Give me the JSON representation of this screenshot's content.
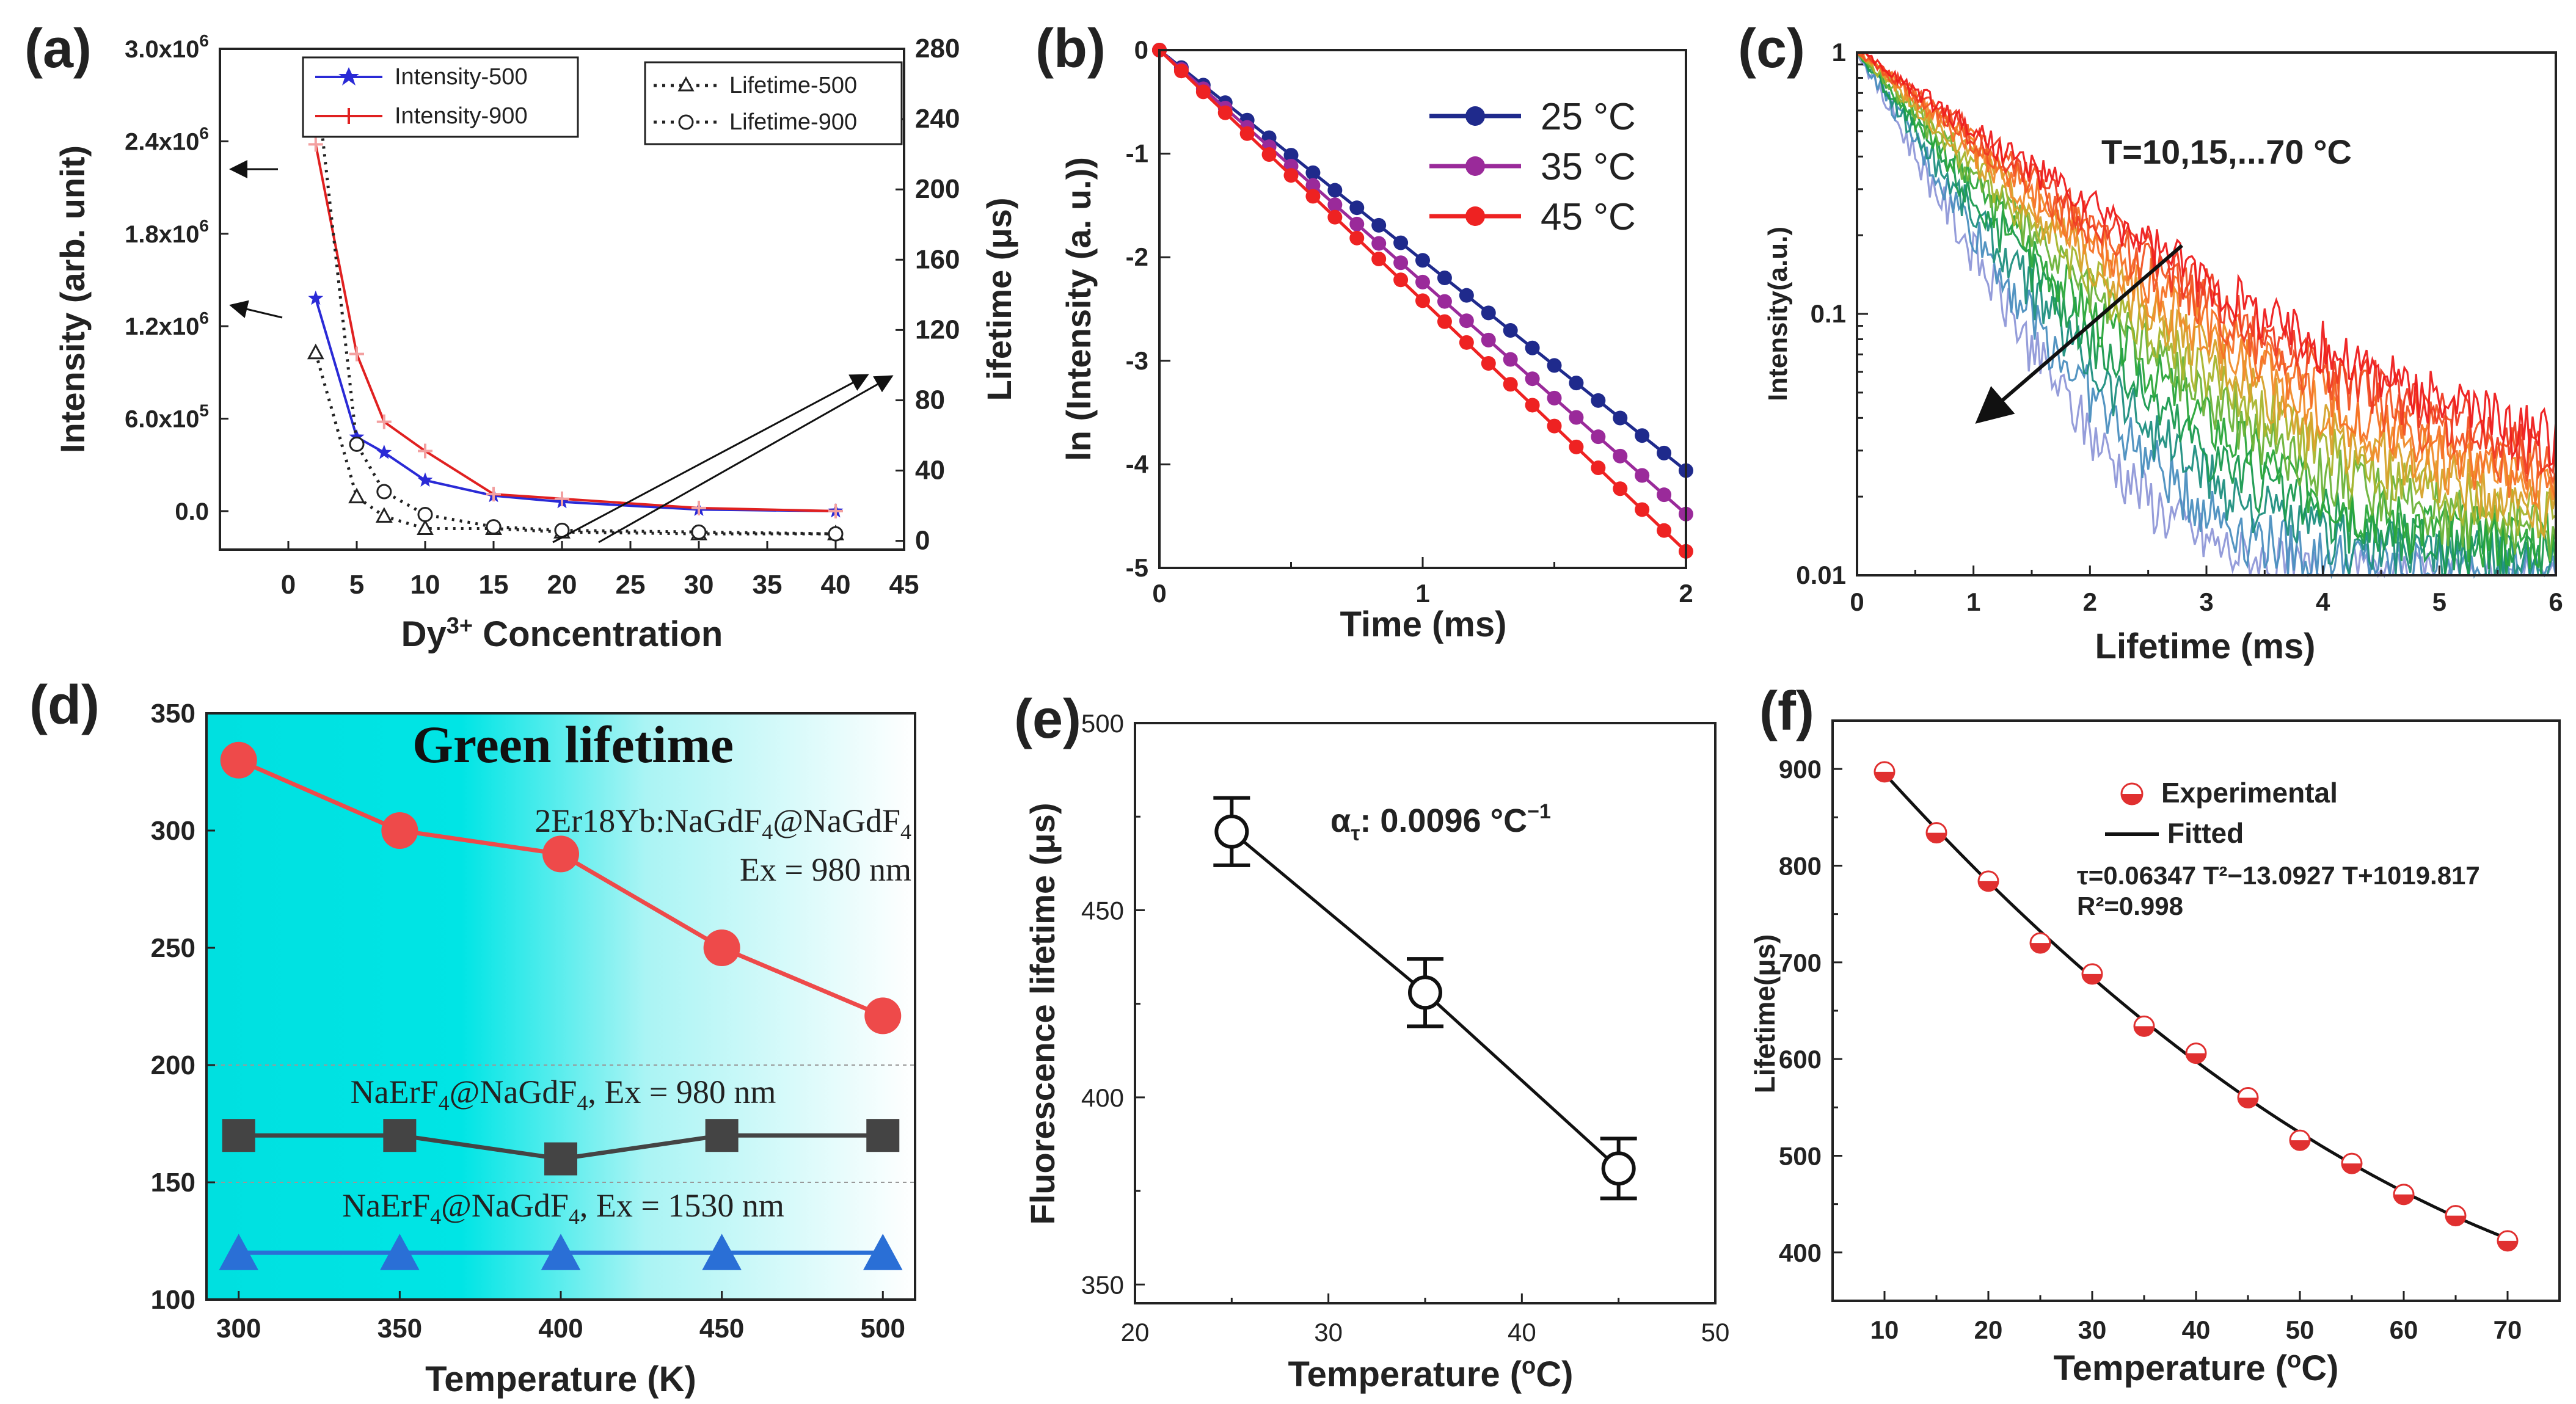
{
  "chart_data": [
    {
      "id": "a",
      "panel_label": "(a)",
      "type": "line",
      "xlabel": "Dy",
      "xlabel_sup": "3+",
      "xlabel_tail": " Concentration",
      "ylabel": "Intensity (arb. unit)",
      "y2label": "Lifetime (μs)",
      "xlim": [
        -5,
        45
      ],
      "ylim": [
        -250000,
        3000000
      ],
      "y2lim": [
        -5,
        280
      ],
      "xticks": [
        0,
        5,
        10,
        15,
        20,
        25,
        30,
        35,
        40,
        45
      ],
      "yticks": [
        {
          "v": 0,
          "t": "0.0"
        },
        {
          "v": 600000,
          "t": "6.0x10",
          "e": "5"
        },
        {
          "v": 1200000,
          "t": "1.2x10",
          "e": "6"
        },
        {
          "v": 1800000,
          "t": "1.8x10",
          "e": "6"
        },
        {
          "v": 2400000,
          "t": "2.4x10",
          "e": "6"
        },
        {
          "v": 3000000,
          "t": "3.0x10",
          "e": "6"
        }
      ],
      "y2ticks": [
        0,
        40,
        80,
        120,
        160,
        200,
        240,
        280
      ],
      "series": [
        {
          "name": "Intensity-500",
          "axis": "left",
          "color": "#2a2ad6",
          "marker": "star",
          "x": [
            2,
            5,
            7,
            10,
            15,
            20,
            30,
            40
          ],
          "values": [
            1380000,
            480000,
            380000,
            200000,
            100000,
            60000,
            10000,
            0
          ]
        },
        {
          "name": "Intensity-900",
          "axis": "left",
          "color": "#e02020",
          "marker": "plus",
          "x": [
            2,
            5,
            7,
            10,
            15,
            20,
            30,
            40
          ],
          "values": [
            2380000,
            1020000,
            580000,
            390000,
            110000,
            80000,
            20000,
            0
          ]
        },
        {
          "name": "Lifetime-500",
          "axis": "right",
          "color": "#222222",
          "marker": "triangle",
          "x": [
            2,
            5,
            7,
            10,
            15,
            20,
            30,
            40
          ],
          "values": [
            107,
            25,
            14,
            7,
            7,
            5,
            4,
            4
          ]
        },
        {
          "name": "Lifetime-900",
          "axis": "right",
          "color": "#222222",
          "marker": "circle",
          "x": [
            2,
            5,
            7,
            10,
            15,
            20,
            30,
            40
          ],
          "values": [
            265,
            55,
            28,
            15,
            8,
            6,
            5,
            4
          ]
        }
      ]
    },
    {
      "id": "b",
      "panel_label": "(b)",
      "type": "line",
      "xlabel": "Time (ms)",
      "ylabel": "ln (Intensity (a. u.))",
      "xlim": [
        0,
        2
      ],
      "ylim": [
        -5,
        0
      ],
      "xticks": [
        0,
        1,
        2
      ],
      "yticks": [
        0,
        -1,
        -2,
        -3,
        -4,
        -5
      ],
      "series": [
        {
          "name": "25 °C",
          "color": "#1f2a8c",
          "slope": -2.03
        },
        {
          "name": "35 °C",
          "color": "#9a2a9a",
          "slope": -2.24
        },
        {
          "name": "45 °C",
          "color": "#ee2222",
          "slope": -2.42
        }
      ]
    },
    {
      "id": "c",
      "panel_label": "(c)",
      "type": "line",
      "xlabel": "Lifetime (ms)",
      "ylabel": "Intensity(a.u.)",
      "xlim": [
        0,
        6
      ],
      "ylim": [
        0.01,
        1
      ],
      "yscale": "log",
      "xticks": [
        0,
        1,
        2,
        3,
        4,
        5,
        6
      ],
      "yticks": [
        {
          "v": 1,
          "t": "1"
        },
        {
          "v": 0.1,
          "t": "0.1"
        },
        {
          "v": 0.01,
          "t": "0.01"
        }
      ],
      "annotation": "T=10,15,...70 °C",
      "temperatures": [
        10,
        15,
        20,
        25,
        30,
        35,
        40,
        45,
        50,
        55,
        60,
        65,
        70
      ]
    },
    {
      "id": "d",
      "panel_label": "(d)",
      "type": "line",
      "title": "Green lifetime",
      "xlabel": "Temperature (K)",
      "ylabel": "",
      "xlim": [
        290,
        510
      ],
      "ylim": [
        100,
        350
      ],
      "xticks": [
        300,
        350,
        400,
        450,
        500
      ],
      "yticks": [
        100,
        150,
        200,
        250,
        300,
        350
      ],
      "x": [
        300,
        350,
        400,
        450,
        500
      ],
      "series": [
        {
          "name": "2Er18Yb:NaGdF4@NaGdF4",
          "label_main": "2Er18Yb:NaGdF",
          "label_sub": "4",
          "label_mid": "@NaGdF",
          "label_sub2": "4",
          "label_line2": "Ex = 980 nm",
          "color": "#ee4a4a",
          "marker": "circle",
          "values": [
            330,
            300,
            290,
            250,
            221
          ]
        },
        {
          "name": "NaErF4@NaGdF4, Ex = 980 nm",
          "label_main": "NaErF",
          "label_sub": "4",
          "label_mid": "@NaGdF",
          "label_sub2": "4",
          "label_tail": ", Ex = 980 nm",
          "color": "#444444",
          "marker": "square",
          "values": [
            170,
            170,
            160,
            170,
            170
          ]
        },
        {
          "name": "NaErF4@NaGdF4, Ex = 1530 nm",
          "label_main": "NaErF",
          "label_sub": "4",
          "label_mid": "@NaGdF",
          "label_sub2": "4",
          "label_tail": ", Ex = 1530 nm",
          "color": "#2a6fd6",
          "marker": "triangle",
          "values": [
            120,
            120,
            120,
            120,
            120
          ]
        }
      ]
    },
    {
      "id": "e",
      "panel_label": "(e)",
      "type": "line",
      "xlabel": "Temperature (",
      "xlabel_sup": "o",
      "xlabel_tail": "C)",
      "ylabel": "Fluorescence lifetime (μs)",
      "xlim": [
        20,
        50
      ],
      "ylim": [
        345,
        500
      ],
      "xticks": [
        20,
        30,
        40,
        50
      ],
      "yticks": [
        350,
        400,
        450,
        500
      ],
      "annotation_prefix": "α",
      "annotation_sub": "τ",
      "annotation_text": ": 0.0096 °C",
      "annotation_sup": "−1",
      "series": [
        {
          "name": "lifetime",
          "x": [
            25,
            35,
            45
          ],
          "values": [
            471,
            428,
            381
          ],
          "errors": [
            9,
            9,
            8
          ]
        }
      ]
    },
    {
      "id": "f",
      "panel_label": "(f)",
      "type": "scatter",
      "xlabel": "Temperature (",
      "xlabel_sup": "o",
      "xlabel_tail": "C)",
      "ylabel": "Lifetime(μs)",
      "xlim": [
        5,
        75
      ],
      "ylim": [
        350,
        950
      ],
      "xticks": [
        10,
        20,
        30,
        40,
        50,
        60,
        70
      ],
      "yticks": [
        400,
        500,
        600,
        700,
        800,
        900
      ],
      "legend": [
        "Experimental",
        "Fitted"
      ],
      "equation": "τ=0.06347 T²−13.0927 T+1019.817",
      "r2": "R²=0.998",
      "fit": [
        0.06347,
        -13.0927,
        1019.817
      ],
      "series": [
        {
          "name": "Experimental",
          "x": [
            10,
            15,
            20,
            25,
            30,
            35,
            40,
            45,
            50,
            55,
            60,
            65,
            70
          ],
          "values": [
            897,
            834,
            784,
            720,
            688,
            634,
            606,
            560,
            516,
            492,
            460,
            438,
            412
          ]
        }
      ]
    }
  ]
}
